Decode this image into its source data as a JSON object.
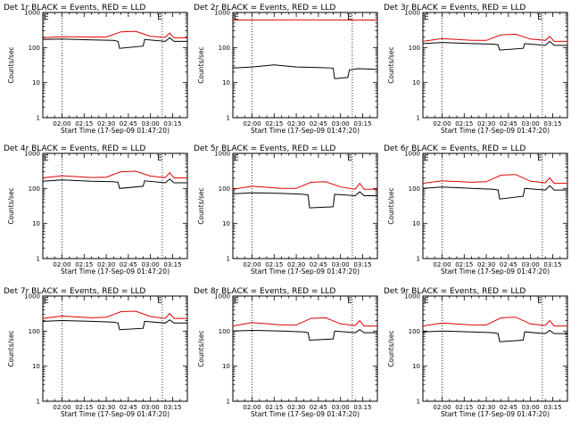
{
  "colors": {
    "events": "#000000",
    "lld": "#e00000",
    "axes": "#000000",
    "background": "#ffffff"
  },
  "time_window": {
    "start_hhmm": "01:47",
    "end_hhmm": "03:25"
  },
  "y_range": [
    1,
    1000
  ],
  "y_scale": "log",
  "y_tick_labels": [
    "1",
    "10",
    "100",
    "1000"
  ],
  "x_tick_labels": [
    "02:00",
    "02:15",
    "02:30",
    "02:45",
    "03:00",
    "03:15"
  ],
  "e_marker_label": "E",
  "shared": {
    "ylabel": "Counts/sec",
    "xlabel": "Start Time (17-Sep-09 01:47:20)"
  },
  "chart_data": [
    {
      "type": "line",
      "title": "Det 1r BLACK = Events, RED = LLD",
      "ylabel": "Counts/sec",
      "xlabel": "Start Time (17-Sep-09 01:47:20)",
      "xlim": [
        "01:47",
        "03:25"
      ],
      "ylim": [
        1,
        1000
      ],
      "yscale": "log",
      "vlines": [
        "02:00",
        "03:08"
      ],
      "e_markers": [
        "01:47",
        "03:04"
      ],
      "series": [
        {
          "color": "#000000",
          "x": [
            "01:47",
            "02:00",
            "02:20",
            "02:35",
            "02:38",
            "02:39",
            "02:55",
            "02:56",
            "03:10",
            "03:13",
            "03:16",
            "03:25"
          ],
          "y": [
            170,
            175,
            165,
            160,
            150,
            95,
            110,
            170,
            150,
            190,
            150,
            150
          ]
        },
        {
          "color": "#e00000",
          "x": [
            "01:47",
            "02:00",
            "02:20",
            "02:30",
            "02:40",
            "02:50",
            "03:00",
            "03:10",
            "03:13",
            "03:16",
            "03:25"
          ],
          "y": [
            190,
            205,
            200,
            200,
            280,
            290,
            210,
            195,
            260,
            190,
            190
          ]
        }
      ]
    },
    {
      "type": "line",
      "title": "Det 2r BLACK = Events, RED = LLD",
      "ylabel": "Counts/sec",
      "xlabel": "Start Time (17-Sep-09 01:47:20)",
      "xlim": [
        "01:47",
        "03:25"
      ],
      "ylim": [
        1,
        1000
      ],
      "yscale": "log",
      "vlines": [
        "02:00",
        "03:08"
      ],
      "e_markers": [
        "01:47",
        "03:04"
      ],
      "series": [
        {
          "color": "#000000",
          "x": [
            "01:47",
            "02:00",
            "02:15",
            "02:30",
            "02:45",
            "02:55",
            "02:56",
            "03:05",
            "03:06",
            "03:12",
            "03:25"
          ],
          "y": [
            26,
            28,
            32,
            28,
            27,
            26,
            13,
            14,
            23,
            25,
            24
          ]
        },
        {
          "color": "#e00000",
          "x": [
            "01:47",
            "02:30",
            "03:00",
            "03:25"
          ],
          "y": [
            610,
            615,
            612,
            608
          ]
        }
      ]
    },
    {
      "type": "line",
      "title": "Det 3r BLACK = Events, RED = LLD",
      "ylabel": "Counts/sec",
      "xlabel": "Start Time (17-Sep-09 01:47:20)",
      "xlim": [
        "01:47",
        "03:25"
      ],
      "ylim": [
        1,
        1000
      ],
      "yscale": "log",
      "vlines": [
        "02:00",
        "03:08"
      ],
      "e_markers": [
        "01:47",
        "03:04"
      ],
      "series": [
        {
          "color": "#000000",
          "x": [
            "01:47",
            "02:00",
            "02:20",
            "02:35",
            "02:38",
            "02:39",
            "02:55",
            "02:56",
            "03:10",
            "03:13",
            "03:16",
            "03:25"
          ],
          "y": [
            130,
            140,
            130,
            125,
            120,
            85,
            95,
            130,
            115,
            150,
            115,
            115
          ]
        },
        {
          "color": "#e00000",
          "x": [
            "01:47",
            "02:00",
            "02:20",
            "02:30",
            "02:40",
            "02:50",
            "03:00",
            "03:10",
            "03:13",
            "03:16",
            "03:25"
          ],
          "y": [
            150,
            180,
            160,
            160,
            230,
            240,
            175,
            160,
            210,
            150,
            150
          ]
        }
      ]
    },
    {
      "type": "line",
      "title": "Det 4r BLACK = Events, RED = LLD",
      "ylabel": "Counts/sec",
      "xlabel": "Start Time (17-Sep-09 01:47:20)",
      "xlim": [
        "01:47",
        "03:25"
      ],
      "ylim": [
        1,
        1000
      ],
      "yscale": "log",
      "vlines": [
        "02:00",
        "03:08"
      ],
      "e_markers": [
        "01:47",
        "03:04"
      ],
      "series": [
        {
          "color": "#000000",
          "x": [
            "01:47",
            "02:00",
            "02:20",
            "02:35",
            "02:38",
            "02:39",
            "02:55",
            "02:56",
            "03:10",
            "03:13",
            "03:16",
            "03:25"
          ],
          "y": [
            160,
            175,
            160,
            155,
            150,
            100,
            115,
            165,
            145,
            185,
            145,
            145
          ]
        },
        {
          "color": "#e00000",
          "x": [
            "01:47",
            "02:00",
            "02:20",
            "02:30",
            "02:40",
            "02:50",
            "03:00",
            "03:10",
            "03:13",
            "03:16",
            "03:25"
          ],
          "y": [
            200,
            230,
            205,
            210,
            300,
            310,
            225,
            205,
            280,
            200,
            200
          ]
        }
      ]
    },
    {
      "type": "line",
      "title": "Det 5r BLACK = Events, RED = LLD",
      "ylabel": "Counts/sec",
      "xlabel": "Start Time (17-Sep-09 01:47:20)",
      "xlim": [
        "01:47",
        "03:25"
      ],
      "ylim": [
        1,
        1000
      ],
      "yscale": "log",
      "vlines": [
        "02:00",
        "03:08"
      ],
      "e_markers": [
        "01:47",
        "03:04"
      ],
      "series": [
        {
          "color": "#000000",
          "x": [
            "01:47",
            "02:00",
            "02:20",
            "02:35",
            "02:38",
            "02:39",
            "02:55",
            "02:56",
            "03:10",
            "03:13",
            "03:16",
            "03:25"
          ],
          "y": [
            70,
            75,
            72,
            68,
            65,
            28,
            30,
            68,
            62,
            80,
            62,
            62
          ]
        },
        {
          "color": "#e00000",
          "x": [
            "01:47",
            "02:00",
            "02:20",
            "02:30",
            "02:40",
            "02:50",
            "03:00",
            "03:10",
            "03:13",
            "03:16",
            "03:25"
          ],
          "y": [
            95,
            115,
            100,
            100,
            150,
            155,
            110,
            95,
            140,
            95,
            95
          ]
        }
      ]
    },
    {
      "type": "line",
      "title": "Det 6r BLACK = Events, RED = LLD",
      "ylabel": "Counts/sec",
      "xlabel": "Start Time (17-Sep-09 01:47:20)",
      "xlim": [
        "01:47",
        "03:25"
      ],
      "ylim": [
        1,
        1000
      ],
      "yscale": "log",
      "vlines": [
        "02:00",
        "03:08"
      ],
      "e_markers": [
        "01:47",
        "03:04"
      ],
      "series": [
        {
          "color": "#000000",
          "x": [
            "01:47",
            "02:00",
            "02:20",
            "02:35",
            "02:38",
            "02:39",
            "02:55",
            "02:56",
            "03:10",
            "03:13",
            "03:16",
            "03:25"
          ],
          "y": [
            100,
            110,
            100,
            95,
            90,
            50,
            60,
            100,
            90,
            120,
            90,
            90
          ]
        },
        {
          "color": "#e00000",
          "x": [
            "01:47",
            "02:00",
            "02:20",
            "02:30",
            "02:40",
            "02:50",
            "03:00",
            "03:10",
            "03:13",
            "03:16",
            "03:25"
          ],
          "y": [
            140,
            165,
            150,
            155,
            240,
            250,
            160,
            145,
            200,
            140,
            140
          ]
        }
      ]
    },
    {
      "type": "line",
      "title": "Det 7r BLACK = Events, RED = LLD",
      "ylabel": "Counts/sec",
      "xlabel": "Start Time (17-Sep-09 01:47:20)",
      "xlim": [
        "01:47",
        "03:25"
      ],
      "ylim": [
        1,
        1000
      ],
      "yscale": "log",
      "vlines": [
        "02:00",
        "03:08"
      ],
      "e_markers": [
        "01:47",
        "03:04"
      ],
      "series": [
        {
          "color": "#000000",
          "x": [
            "01:47",
            "02:00",
            "02:20",
            "02:35",
            "02:38",
            "02:39",
            "02:55",
            "02:56",
            "03:10",
            "03:13",
            "03:16",
            "03:25"
          ],
          "y": [
            190,
            200,
            190,
            180,
            170,
            110,
            120,
            190,
            170,
            210,
            170,
            170
          ]
        },
        {
          "color": "#e00000",
          "x": [
            "01:47",
            "02:00",
            "02:20",
            "02:30",
            "02:40",
            "02:50",
            "03:00",
            "03:10",
            "03:13",
            "03:16",
            "03:25"
          ],
          "y": [
            230,
            270,
            240,
            250,
            360,
            370,
            260,
            230,
            320,
            230,
            230
          ]
        }
      ]
    },
    {
      "type": "line",
      "title": "Det 8r BLACK = Events, RED = LLD",
      "ylabel": "Counts/sec",
      "xlabel": "Start Time (17-Sep-09 01:47:20)",
      "xlim": [
        "01:47",
        "03:25"
      ],
      "ylim": [
        1,
        1000
      ],
      "yscale": "log",
      "vlines": [
        "02:00",
        "03:08"
      ],
      "e_markers": [
        "01:47",
        "03:04"
      ],
      "series": [
        {
          "color": "#000000",
          "x": [
            "01:47",
            "02:00",
            "02:20",
            "02:35",
            "02:38",
            "02:39",
            "02:55",
            "02:56",
            "03:10",
            "03:13",
            "03:16",
            "03:25"
          ],
          "y": [
            100,
            105,
            100,
            95,
            90,
            55,
            60,
            100,
            90,
            110,
            90,
            90
          ]
        },
        {
          "color": "#e00000",
          "x": [
            "01:47",
            "02:00",
            "02:20",
            "02:30",
            "02:40",
            "02:50",
            "03:00",
            "03:10",
            "03:13",
            "03:16",
            "03:25"
          ],
          "y": [
            140,
            175,
            150,
            150,
            230,
            240,
            160,
            145,
            200,
            140,
            140
          ]
        }
      ]
    },
    {
      "type": "line",
      "title": "Det 9r BLACK = Events, RED = LLD",
      "ylabel": "Counts/sec",
      "xlabel": "Start Time (17-Sep-09 01:47:20)",
      "xlim": [
        "01:47",
        "03:25"
      ],
      "ylim": [
        1,
        1000
      ],
      "yscale": "log",
      "vlines": [
        "02:00",
        "03:08"
      ],
      "e_markers": [
        "01:47",
        "03:04"
      ],
      "series": [
        {
          "color": "#000000",
          "x": [
            "01:47",
            "02:00",
            "02:20",
            "02:35",
            "02:38",
            "02:39",
            "02:55",
            "02:56",
            "03:10",
            "03:13",
            "03:16",
            "03:25"
          ],
          "y": [
            95,
            100,
            95,
            90,
            85,
            50,
            55,
            95,
            85,
            105,
            85,
            85
          ]
        },
        {
          "color": "#e00000",
          "x": [
            "01:47",
            "02:00",
            "02:20",
            "02:30",
            "02:40",
            "02:50",
            "03:00",
            "03:10",
            "03:13",
            "03:16",
            "03:25"
          ],
          "y": [
            140,
            170,
            150,
            150,
            240,
            250,
            160,
            145,
            200,
            140,
            140
          ]
        }
      ]
    }
  ]
}
